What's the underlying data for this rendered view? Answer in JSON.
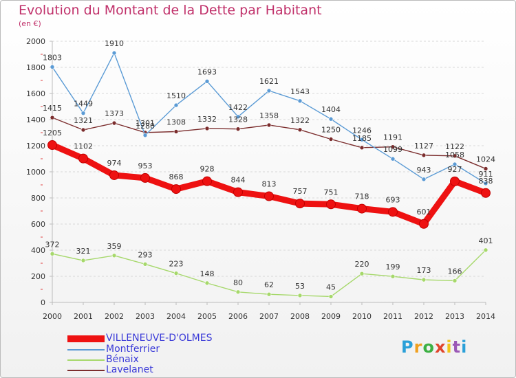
{
  "chart_data": {
    "type": "line",
    "title": "Evolution du Montant de la Dette par Habitant",
    "subtitle": "(en €)",
    "x": [
      "2000",
      "2001",
      "2002",
      "2003",
      "2004",
      "2005",
      "2006",
      "2007",
      "2008",
      "2009",
      "2010",
      "2011",
      "2012",
      "2013",
      "2014"
    ],
    "y_ticks": [
      "0",
      "200",
      "400",
      "600",
      "800",
      "1000",
      "1200",
      "1400",
      "1600",
      "1800",
      "2000"
    ],
    "ylim": [
      0,
      2000
    ],
    "grid": "horizontal dashed",
    "legend_position": "bottom-left",
    "series": [
      {
        "name": "VILLENEUVE-D'OLMES",
        "color": "#ee1111",
        "emphasis": "thick",
        "values": [
          1205,
          1102,
          974,
          953,
          868,
          928,
          844,
          813,
          757,
          751,
          718,
          693,
          601,
          927,
          838
        ],
        "labels": [
          "1205",
          "1102",
          "974",
          "953",
          "868",
          "928",
          "844",
          "813",
          "757",
          "751",
          "718",
          "693",
          "601",
          "927",
          "838"
        ]
      },
      {
        "name": "Montferrier",
        "color": "#5b9bd5",
        "values": [
          1803,
          1449,
          1910,
          1280,
          1510,
          1693,
          1422,
          1621,
          1543,
          1404,
          1246,
          1099,
          943,
          1058,
          911
        ],
        "labels": [
          "1803",
          "1449",
          "1910",
          "1280",
          "1510",
          "1693",
          "1422",
          "1621",
          "1543",
          "1404",
          "1246",
          "1099",
          "943",
          "1058",
          "911"
        ]
      },
      {
        "name": "Bénaix",
        "color": "#a6d86b",
        "values": [
          372,
          321,
          359,
          293,
          223,
          148,
          80,
          62,
          53,
          45,
          220,
          199,
          173,
          166,
          401
        ],
        "labels": [
          "372",
          "321",
          "359",
          "293",
          "223",
          "148",
          "80",
          "62",
          "53",
          "45",
          "220",
          "199",
          "173",
          "166",
          "401"
        ]
      },
      {
        "name": "Lavelanet",
        "color": "#7b2d2d",
        "values": [
          1415,
          1321,
          1373,
          1301,
          1308,
          1332,
          1328,
          1358,
          1322,
          1250,
          1185,
          1191,
          1127,
          1122,
          1024
        ],
        "labels": [
          "1415",
          "1321",
          "1373",
          "1301",
          "1308",
          "1332",
          "1328",
          "1358",
          "1322",
          "1250",
          "1185",
          "1191",
          "1127",
          "1122",
          "1024"
        ]
      }
    ]
  },
  "logo": {
    "letters": [
      "P",
      "r",
      "o",
      "x",
      "i",
      "t",
      "i"
    ],
    "colors": [
      "#2aa0d8",
      "#f0a020",
      "#3cb043",
      "#e0462c",
      "#f0c419",
      "#9b59b6",
      "#2aa0d8"
    ]
  }
}
